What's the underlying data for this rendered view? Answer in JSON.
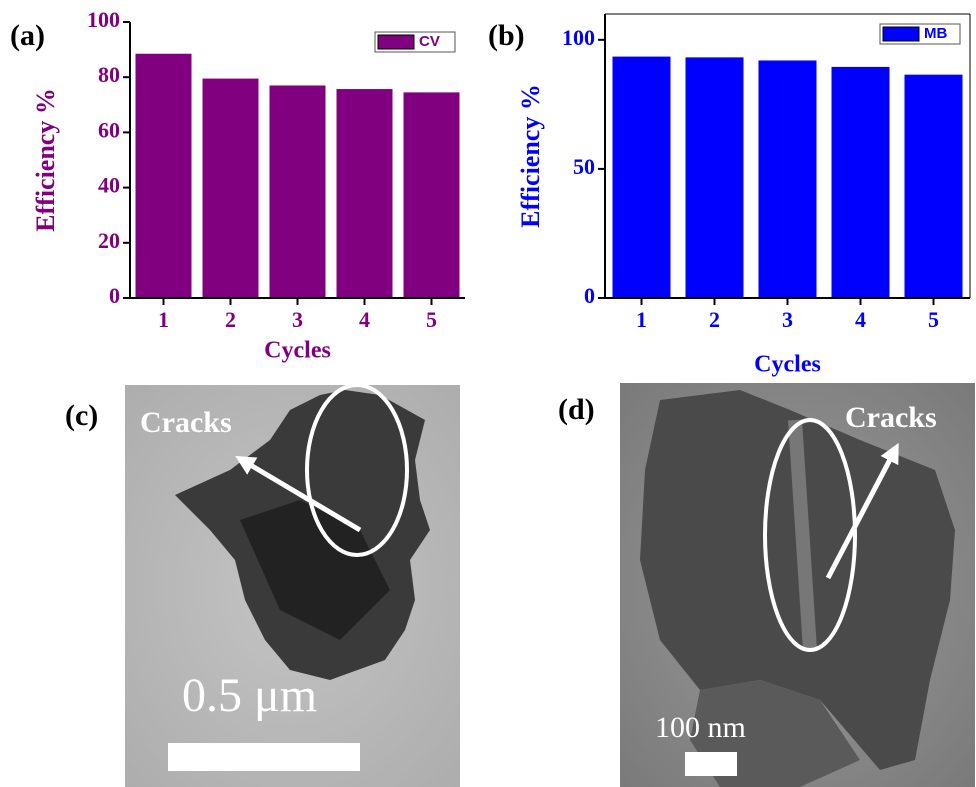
{
  "chart_data": [
    {
      "type": "bar",
      "panel": "(a)",
      "categories": [
        "1",
        "2",
        "3",
        "4",
        "5"
      ],
      "series": [
        {
          "name": "CV",
          "color": "#800080",
          "values": [
            88.5,
            79.5,
            77,
            75.7,
            74.5
          ]
        }
      ],
      "y_label": "Efficiency %",
      "x_label": "Cycles",
      "ylim": [
        0,
        100
      ],
      "yticks": [
        0,
        20,
        40,
        60,
        80,
        100
      ],
      "legend": "upper right",
      "frame": false
    },
    {
      "type": "bar",
      "panel": "(b)",
      "categories": [
        "1",
        "2",
        "3",
        "4",
        "5"
      ],
      "series": [
        {
          "name": "MB",
          "color": "#0000ff",
          "values": [
            93.5,
            93.2,
            92,
            89.5,
            86.5
          ]
        }
      ],
      "y_label": "Efficiency %",
      "x_label": "Cycles",
      "ylim": [
        0,
        110
      ],
      "yticks": [
        0,
        50,
        100
      ],
      "legend": "upper right",
      "frame": true
    }
  ],
  "images": [
    {
      "panel": "(c)",
      "annotation": "Cracks",
      "scale_bar": "0.5 μm"
    },
    {
      "panel": "(d)",
      "annotation": "Cracks",
      "scale_bar": "100 nm"
    }
  ]
}
